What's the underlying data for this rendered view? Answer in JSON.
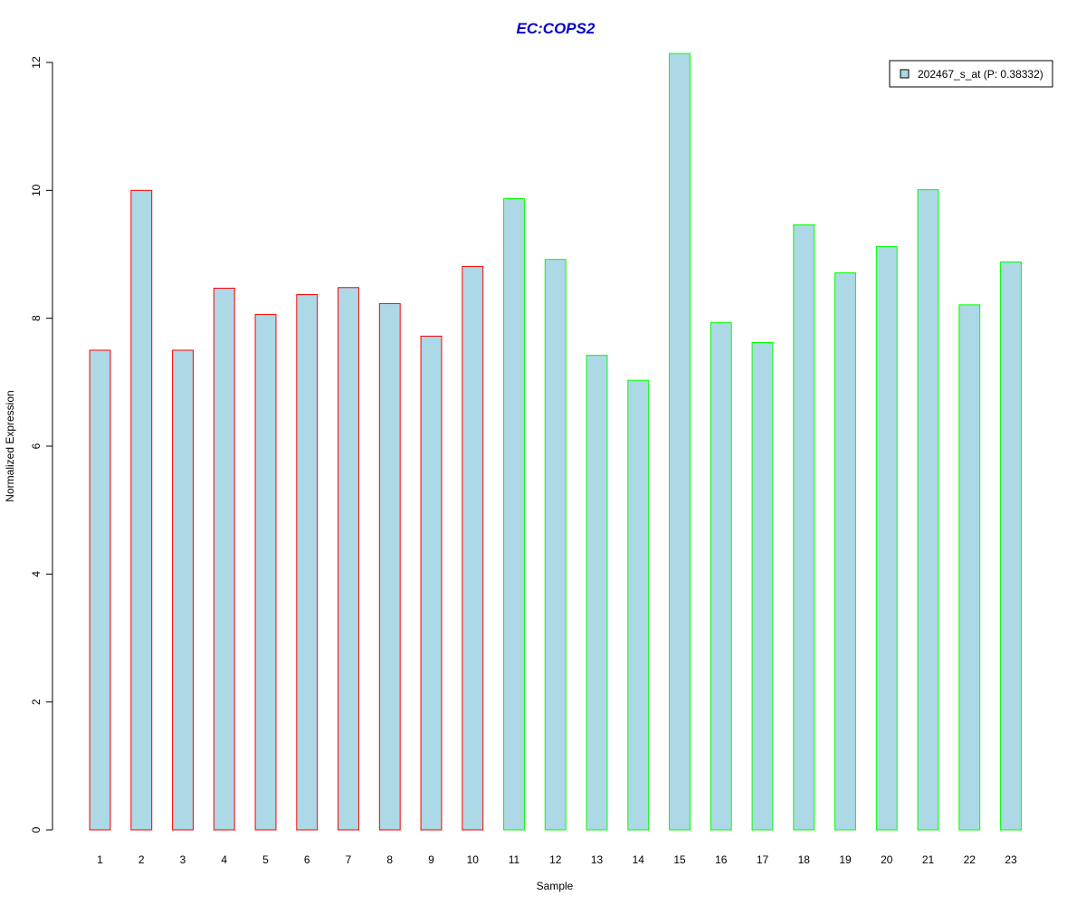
{
  "chart_data": {
    "type": "bar",
    "title": "EC:COPS2",
    "xlabel": "Sample",
    "ylabel": "Normalized Expression",
    "categories": [
      "1",
      "2",
      "3",
      "4",
      "5",
      "6",
      "7",
      "8",
      "9",
      "10",
      "11",
      "12",
      "13",
      "14",
      "15",
      "16",
      "17",
      "18",
      "19",
      "20",
      "21",
      "22",
      "23"
    ],
    "series": [
      {
        "name": "202467_s_at (P: 0.38332)",
        "values": [
          7.5,
          10.0,
          7.5,
          8.47,
          8.06,
          8.37,
          8.48,
          8.23,
          7.72,
          8.81,
          9.87,
          8.92,
          7.42,
          7.03,
          12.14,
          7.93,
          7.62,
          9.46,
          8.71,
          9.12,
          10.01,
          8.21,
          8.88
        ]
      }
    ],
    "group": [
      "A",
      "A",
      "A",
      "A",
      "A",
      "A",
      "A",
      "A",
      "A",
      "A",
      "B",
      "B",
      "B",
      "B",
      "B",
      "B",
      "B",
      "B",
      "B",
      "B",
      "B",
      "B",
      "B"
    ],
    "ylim": [
      0,
      12
    ],
    "yticks": [
      0,
      2,
      4,
      6,
      8,
      10,
      12
    ],
    "grid": false,
    "legend_position": "top-right"
  },
  "colors": {
    "bar_fill": "#add8e6",
    "group_A_outline": "#ff0000",
    "group_B_outline": "#00ff00",
    "title": "#0000cc",
    "axis": "#000000"
  }
}
